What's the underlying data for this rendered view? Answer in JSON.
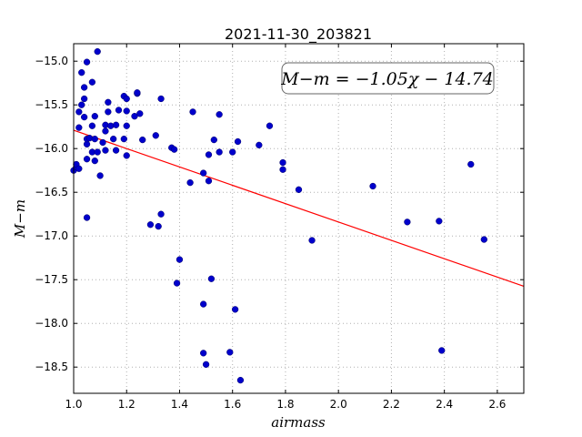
{
  "chart_data": {
    "type": "scatter",
    "title": "2021-11-30_203821",
    "xlabel": "airmass",
    "ylabel": "M−m",
    "xlim": [
      1.0,
      2.7
    ],
    "ylim": [
      -18.8,
      -14.8
    ],
    "xticks": [
      1.0,
      1.2,
      1.4,
      1.6,
      1.8,
      2.0,
      2.2,
      2.4,
      2.6
    ],
    "xtick_labels": [
      "1.0",
      "1.2",
      "1.4",
      "1.6",
      "1.8",
      "2.0",
      "2.2",
      "2.4",
      "2.6"
    ],
    "yticks": [
      -15.0,
      -15.5,
      -16.0,
      -16.5,
      -17.0,
      -17.5,
      -18.0,
      -18.5
    ],
    "ytick_labels": [
      "−15.0",
      "−15.5",
      "−16.0",
      "−16.5",
      "−17.0",
      "−17.5",
      "−18.0",
      "−18.5"
    ],
    "grid": true,
    "annotation": "M−m = −1.05χ − 14.74",
    "annotation_position": "top-right",
    "fit": {
      "slope": -1.05,
      "intercept": -14.74,
      "color": "#ff0000"
    },
    "point_color": "#0000cc",
    "points": [
      [
        1.0,
        -16.25
      ],
      [
        1.01,
        -16.21
      ],
      [
        1.01,
        -16.18
      ],
      [
        1.02,
        -16.23
      ],
      [
        1.02,
        -15.76
      ],
      [
        1.02,
        -15.58
      ],
      [
        1.03,
        -15.5
      ],
      [
        1.03,
        -15.13
      ],
      [
        1.04,
        -15.64
      ],
      [
        1.04,
        -15.3
      ],
      [
        1.04,
        -15.43
      ],
      [
        1.05,
        -16.12
      ],
      [
        1.05,
        -15.95
      ],
      [
        1.05,
        -15.89
      ],
      [
        1.05,
        -16.79
      ],
      [
        1.05,
        -15.01
      ],
      [
        1.06,
        -15.88
      ],
      [
        1.07,
        -15.74
      ],
      [
        1.07,
        -15.24
      ],
      [
        1.07,
        -16.04
      ],
      [
        1.08,
        -15.63
      ],
      [
        1.08,
        -15.89
      ],
      [
        1.08,
        -16.14
      ],
      [
        1.09,
        -16.04
      ],
      [
        1.09,
        -14.89
      ],
      [
        1.1,
        -16.31
      ],
      [
        1.11,
        -15.93
      ],
      [
        1.12,
        -15.73
      ],
      [
        1.12,
        -15.8
      ],
      [
        1.12,
        -16.02
      ],
      [
        1.13,
        -15.58
      ],
      [
        1.13,
        -15.47
      ],
      [
        1.14,
        -15.74
      ],
      [
        1.15,
        -15.89
      ],
      [
        1.16,
        -15.73
      ],
      [
        1.16,
        -16.02
      ],
      [
        1.17,
        -15.56
      ],
      [
        1.19,
        -15.89
      ],
      [
        1.19,
        -15.4
      ],
      [
        1.2,
        -15.43
      ],
      [
        1.2,
        -15.57
      ],
      [
        1.2,
        -15.74
      ],
      [
        1.2,
        -16.08
      ],
      [
        1.23,
        -15.63
      ],
      [
        1.24,
        -15.37
      ],
      [
        1.24,
        -15.36
      ],
      [
        1.25,
        -15.6
      ],
      [
        1.26,
        -15.9
      ],
      [
        1.29,
        -16.87
      ],
      [
        1.31,
        -15.85
      ],
      [
        1.32,
        -16.89
      ],
      [
        1.33,
        -16.75
      ],
      [
        1.33,
        -15.43
      ],
      [
        1.37,
        -15.99
      ],
      [
        1.38,
        -16.01
      ],
      [
        1.39,
        -17.54
      ],
      [
        1.4,
        -17.27
      ],
      [
        1.44,
        -16.39
      ],
      [
        1.45,
        -15.58
      ],
      [
        1.49,
        -16.28
      ],
      [
        1.49,
        -17.78
      ],
      [
        1.49,
        -18.34
      ],
      [
        1.5,
        -18.47
      ],
      [
        1.51,
        -16.37
      ],
      [
        1.51,
        -16.07
      ],
      [
        1.52,
        -17.49
      ],
      [
        1.53,
        -15.9
      ],
      [
        1.55,
        -16.04
      ],
      [
        1.55,
        -15.61
      ],
      [
        1.59,
        -18.33
      ],
      [
        1.6,
        -16.04
      ],
      [
        1.61,
        -17.84
      ],
      [
        1.62,
        -15.92
      ],
      [
        1.63,
        -18.65
      ],
      [
        1.7,
        -15.96
      ],
      [
        1.74,
        -15.74
      ],
      [
        1.79,
        -16.24
      ],
      [
        1.79,
        -16.16
      ],
      [
        1.85,
        -16.47
      ],
      [
        1.9,
        -17.05
      ],
      [
        2.13,
        -16.43
      ],
      [
        2.26,
        -16.84
      ],
      [
        2.38,
        -16.83
      ],
      [
        2.39,
        -18.31
      ],
      [
        2.5,
        -16.18
      ],
      [
        2.55,
        -17.04
      ]
    ]
  }
}
